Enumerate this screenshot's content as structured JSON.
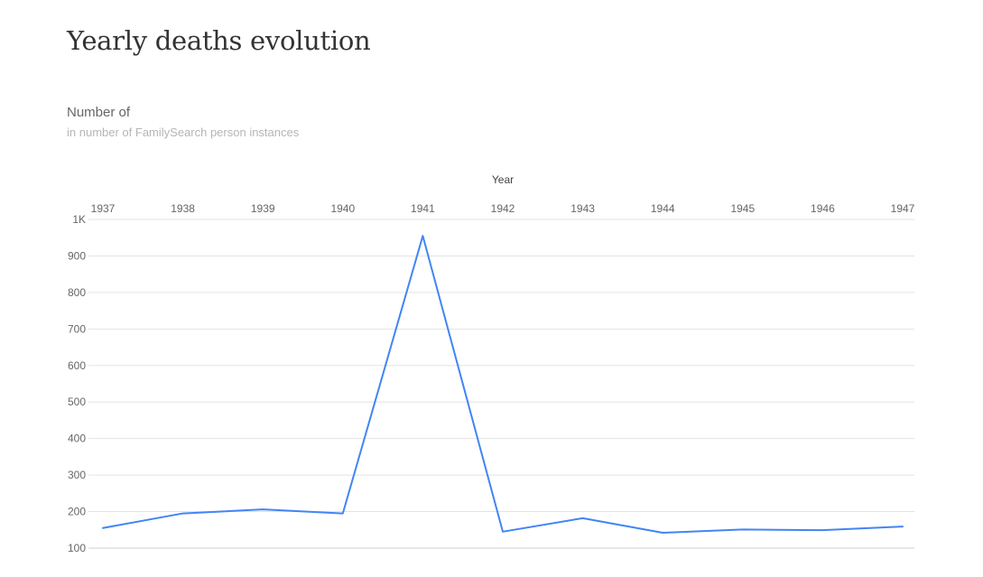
{
  "page": {
    "title": "Yearly deaths evolution"
  },
  "chart_data": {
    "type": "line",
    "title": "Yearly deaths evolution",
    "subtitle": "Number of",
    "unit_label": "in number of FamilySearch person instances",
    "xlabel": "Year",
    "ylabel": "",
    "x_axis_position": "top",
    "categories": [
      "1937",
      "1938",
      "1939",
      "1940",
      "1941",
      "1942",
      "1943",
      "1944",
      "1945",
      "1946",
      "1947"
    ],
    "y_ticks": [
      100,
      200,
      300,
      400,
      500,
      600,
      700,
      800,
      900,
      1000
    ],
    "y_tick_labels": [
      "100",
      "200",
      "300",
      "400",
      "500",
      "600",
      "700",
      "800",
      "900",
      "1K"
    ],
    "ylim": [
      100,
      1000
    ],
    "grid": true,
    "series": [
      {
        "color": "#4285f4",
        "values": [
          155,
          195,
          206,
          195,
          955,
          145,
          182,
          142,
          151,
          149,
          159
        ]
      }
    ]
  }
}
